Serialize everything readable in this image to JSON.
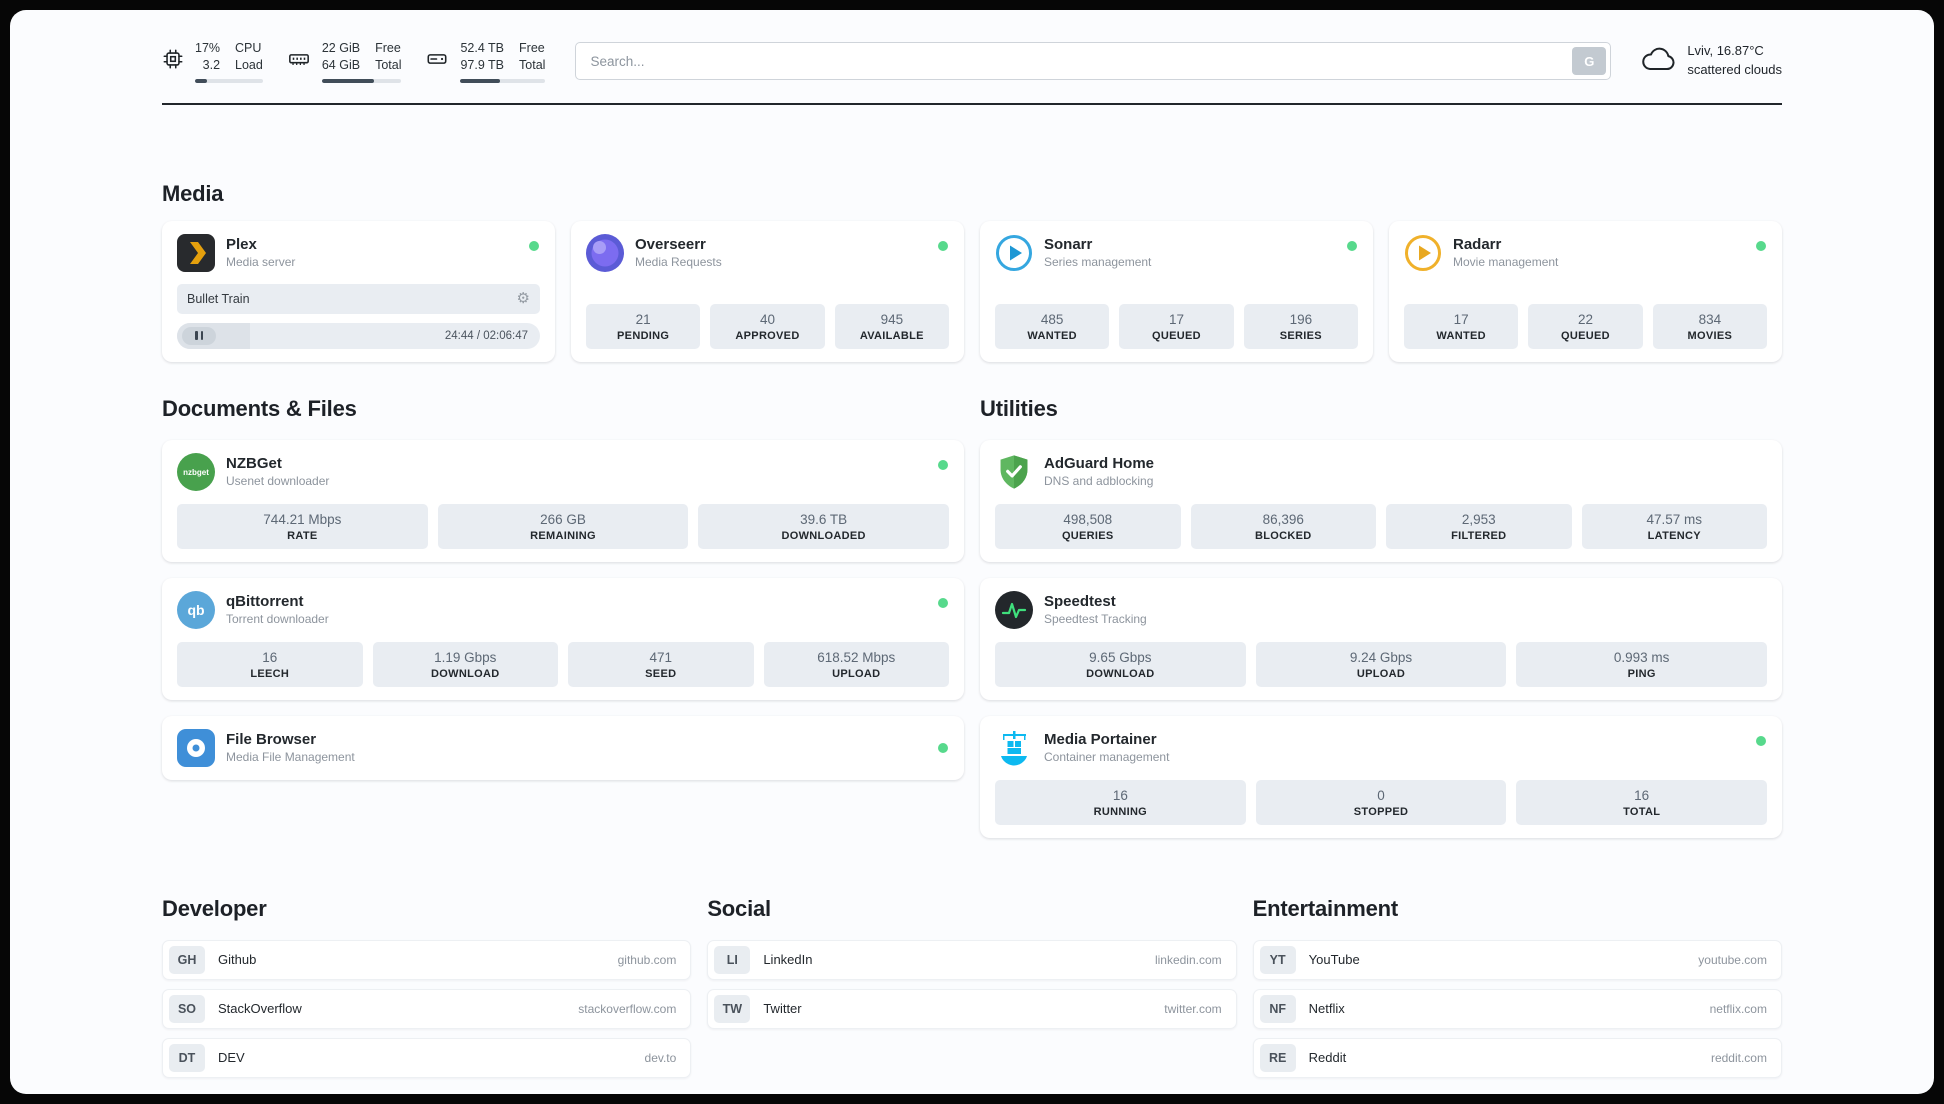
{
  "colors": {
    "status_online": "#57d98c",
    "plex_accent": "#e5a00d",
    "sonarr_blue": "#1e97d4",
    "radarr_yellow": "#e8a820",
    "overseerr_purple": "#7c6cf0",
    "nzbget_green": "#48a14d",
    "qbittorrent_blue": "#5ba7d9",
    "filebrowser_blue": "#3f8fd8",
    "adguard_green": "#4ca34d",
    "speedtest_pulse": "#3fe07c",
    "portainer_blue": "#0db9f0"
  },
  "icons": {
    "gear_glyph": "⚙"
  },
  "topbar": {
    "cpu": {
      "value1": "17%",
      "value2": "3.2",
      "label1": "CPU",
      "label2": "Load",
      "progress": 17
    },
    "ram": {
      "value1": "22 GiB",
      "value2": "64 GiB",
      "label1": "Free",
      "label2": "Total",
      "progress": 66
    },
    "disk": {
      "value1": "52.4 TB",
      "value2": "97.9 TB",
      "label1": "Free",
      "label2": "Total",
      "progress": 46
    },
    "search": {
      "placeholder": "Search...",
      "button_label": "G"
    },
    "weather": {
      "location": "Lviv, 16.87°C",
      "condition": "scattered clouds"
    }
  },
  "media": {
    "heading": "Media",
    "plex": {
      "name": "Plex",
      "subtitle": "Media server",
      "now_playing": "Bullet Train",
      "time": "24:44 / 02:06:47",
      "progress": 20
    },
    "overseerr": {
      "name": "Overseerr",
      "subtitle": "Media Requests",
      "stats": [
        {
          "value": "21",
          "label": "PENDING"
        },
        {
          "value": "40",
          "label": "APPROVED"
        },
        {
          "value": "945",
          "label": "AVAILABLE"
        }
      ]
    },
    "sonarr": {
      "name": "Sonarr",
      "subtitle": "Series management",
      "stats": [
        {
          "value": "485",
          "label": "WANTED"
        },
        {
          "value": "17",
          "label": "QUEUED"
        },
        {
          "value": "196",
          "label": "SERIES"
        }
      ]
    },
    "radarr": {
      "name": "Radarr",
      "subtitle": "Movie management",
      "stats": [
        {
          "value": "17",
          "label": "WANTED"
        },
        {
          "value": "22",
          "label": "QUEUED"
        },
        {
          "value": "834",
          "label": "MOVIES"
        }
      ]
    }
  },
  "documents": {
    "heading": "Documents & Files",
    "nzbget": {
      "name": "NZBGet",
      "subtitle": "Usenet downloader",
      "icon_text": "nzbget",
      "stats": [
        {
          "value": "744.21 Mbps",
          "label": "RATE"
        },
        {
          "value": "266 GB",
          "label": "REMAINING"
        },
        {
          "value": "39.6 TB",
          "label": "DOWNLOADED"
        }
      ]
    },
    "qbittorrent": {
      "name": "qBittorrent",
      "subtitle": "Torrent downloader",
      "icon_text": "qb",
      "stats": [
        {
          "value": "16",
          "label": "LEECH"
        },
        {
          "value": "1.19 Gbps",
          "label": "DOWNLOAD"
        },
        {
          "value": "471",
          "label": "SEED"
        },
        {
          "value": "618.52 Mbps",
          "label": "UPLOAD"
        }
      ]
    },
    "filebrowser": {
      "name": "File Browser",
      "subtitle": "Media File Management"
    }
  },
  "utilities": {
    "heading": "Utilities",
    "adguard": {
      "name": "AdGuard Home",
      "subtitle": "DNS and adblocking",
      "stats": [
        {
          "value": "498,508",
          "label": "QUERIES"
        },
        {
          "value": "86,396",
          "label": "BLOCKED"
        },
        {
          "value": "2,953",
          "label": "FILTERED"
        },
        {
          "value": "47.57 ms",
          "label": "LATENCY"
        }
      ]
    },
    "speedtest": {
      "name": "Speedtest",
      "subtitle": "Speedtest Tracking",
      "stats": [
        {
          "value": "9.65 Gbps",
          "label": "DOWNLOAD"
        },
        {
          "value": "9.24 Gbps",
          "label": "UPLOAD"
        },
        {
          "value": "0.993 ms",
          "label": "PING"
        }
      ]
    },
    "portainer": {
      "name": "Media Portainer",
      "subtitle": "Container management",
      "stats": [
        {
          "value": "16",
          "label": "RUNNING"
        },
        {
          "value": "0",
          "label": "STOPPED"
        },
        {
          "value": "16",
          "label": "TOTAL"
        }
      ]
    }
  },
  "bookmarks": {
    "developer": {
      "heading": "Developer",
      "items": [
        {
          "abbr": "GH",
          "name": "Github",
          "url": "github.com"
        },
        {
          "abbr": "SO",
          "name": "StackOverflow",
          "url": "stackoverflow.com"
        },
        {
          "abbr": "DT",
          "name": "DEV",
          "url": "dev.to"
        }
      ]
    },
    "social": {
      "heading": "Social",
      "items": [
        {
          "abbr": "LI",
          "name": "LinkedIn",
          "url": "linkedin.com"
        },
        {
          "abbr": "TW",
          "name": "Twitter",
          "url": "twitter.com"
        }
      ]
    },
    "entertainment": {
      "heading": "Entertainment",
      "items": [
        {
          "abbr": "YT",
          "name": "YouTube",
          "url": "youtube.com"
        },
        {
          "abbr": "NF",
          "name": "Netflix",
          "url": "netflix.com"
        },
        {
          "abbr": "RE",
          "name": "Reddit",
          "url": "reddit.com"
        }
      ]
    }
  }
}
